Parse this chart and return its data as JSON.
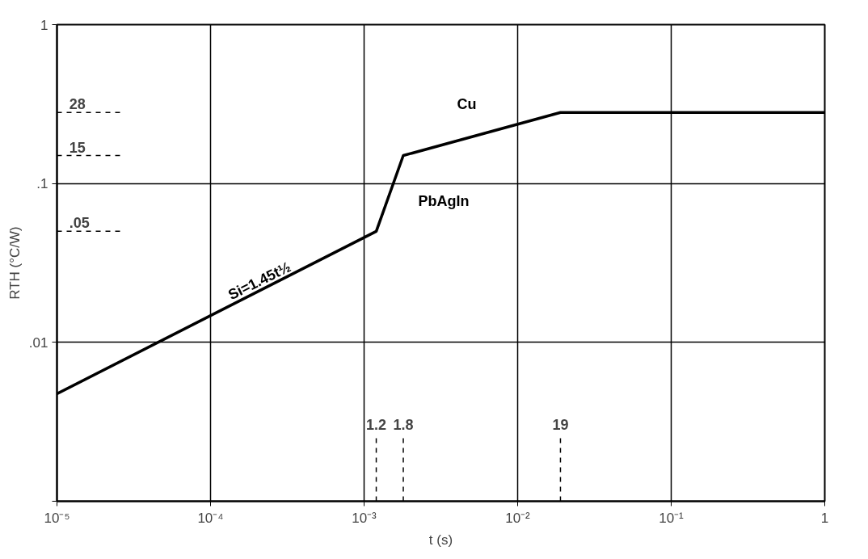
{
  "chart_data": {
    "type": "line",
    "xlabel": "t (s)",
    "ylabel": "RTH (°C/W)",
    "log": "xy",
    "x": [
      1e-05,
      0.0012,
      0.0018,
      0.019,
      1
    ],
    "series": [
      {
        "color": "#000000",
        "values": [
          0.00475,
          0.05,
          0.15,
          0.28,
          0.28
        ]
      }
    ],
    "xlim": [
      1e-05,
      1
    ],
    "ylim": [
      0.001,
      1
    ],
    "xticks": [
      {
        "value": 1e-05,
        "label": "10⁻⁵"
      },
      {
        "value": 0.0001,
        "label": "10⁻⁴"
      },
      {
        "value": 0.001,
        "label": "10⁻³"
      },
      {
        "value": 0.01,
        "label": "10⁻²"
      },
      {
        "value": 0.1,
        "label": "10⁻¹"
      },
      {
        "value": 1,
        "label": "1"
      }
    ],
    "yticks": [
      {
        "value": 0.001,
        "label": null
      },
      {
        "value": 0.01,
        "label": ".01"
      },
      {
        "value": 0.1,
        "label": ".1"
      },
      {
        "value": 1,
        "label": "1"
      }
    ],
    "grid": true,
    "marker": "none",
    "line_style": "solid",
    "ref_lines": [
      {
        "axis": "y",
        "value": 0.28,
        "label": "28",
        "line_style": "dashed"
      },
      {
        "axis": "y",
        "value": 0.15,
        "label": "15",
        "line_style": "dashed"
      },
      {
        "axis": "y",
        "value": 0.05,
        "label": ".05",
        "line_style": "dashed"
      },
      {
        "axis": "x",
        "value": 0.0012,
        "label": "1.2",
        "line_style": "dashed"
      },
      {
        "axis": "x",
        "value": 0.0018,
        "label": "1.8",
        "line_style": "dashed"
      },
      {
        "axis": "x",
        "value": 0.019,
        "label": "19",
        "line_style": "dashed"
      }
    ],
    "annotations": [
      {
        "text": "Si=1.45t½",
        "x": 0.00022,
        "y": 0.02
      },
      "PbAgIn",
      "Cu"
    ]
  }
}
